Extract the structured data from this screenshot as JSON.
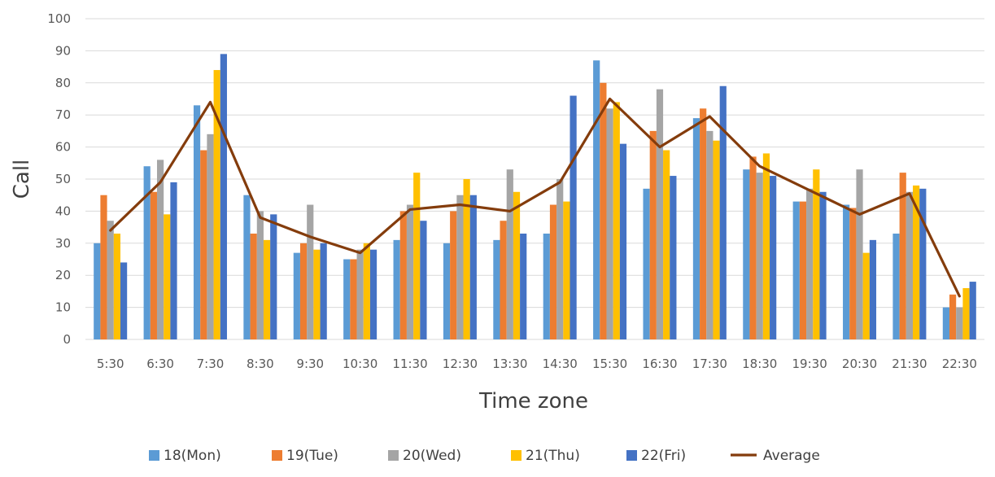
{
  "chart_data": {
    "type": "bar",
    "title": "",
    "xlabel": "Time zone",
    "ylabel": "Call",
    "ylim": [
      0,
      100
    ],
    "yticks": [
      0,
      10,
      20,
      30,
      40,
      50,
      60,
      70,
      80,
      90,
      100
    ],
    "grid": true,
    "legend_position": "bottom",
    "categories": [
      "5:30",
      "6:30",
      "7:30",
      "8:30",
      "9:30",
      "10:30",
      "11:30",
      "12:30",
      "13:30",
      "14:30",
      "15:30",
      "16:30",
      "17:30",
      "18:30",
      "19:30",
      "20:30",
      "21:30",
      "22:30"
    ],
    "series": [
      {
        "name": "18(Mon)",
        "type": "bar",
        "color": "#5B9BD5",
        "values": [
          30,
          54,
          73,
          45,
          27,
          25,
          31,
          30,
          31,
          33,
          87,
          47,
          69,
          53,
          43,
          42,
          33,
          10
        ]
      },
      {
        "name": "19(Tue)",
        "type": "bar",
        "color": "#ED7D31",
        "values": [
          45,
          46,
          59,
          33,
          30,
          25,
          40,
          40,
          37,
          42,
          80,
          65,
          72,
          57,
          43,
          41,
          52,
          14
        ]
      },
      {
        "name": "20(Wed)",
        "type": "bar",
        "color": "#A5A5A5",
        "values": [
          37,
          56,
          64,
          40,
          42,
          28,
          42,
          45,
          53,
          50,
          72,
          78,
          65,
          52,
          47,
          53,
          46,
          10
        ]
      },
      {
        "name": "21(Thu)",
        "type": "bar",
        "color": "#FFC000",
        "values": [
          33,
          39,
          84,
          31,
          28,
          30,
          52,
          50,
          46,
          43,
          74,
          59,
          62,
          58,
          53,
          27,
          48,
          16
        ]
      },
      {
        "name": "22(Fri)",
        "type": "bar",
        "color": "#4472C4",
        "values": [
          24,
          49,
          89,
          39,
          30,
          28,
          37,
          45,
          33,
          76,
          61,
          51,
          79,
          51,
          46,
          31,
          47,
          18
        ]
      },
      {
        "name": "Average",
        "type": "line",
        "color": "#843C0C",
        "values": [
          34,
          49,
          74,
          38,
          32,
          27,
          40.5,
          42,
          40,
          49,
          75,
          60,
          69.5,
          54,
          46.5,
          39,
          45.5,
          13.5
        ]
      }
    ]
  }
}
